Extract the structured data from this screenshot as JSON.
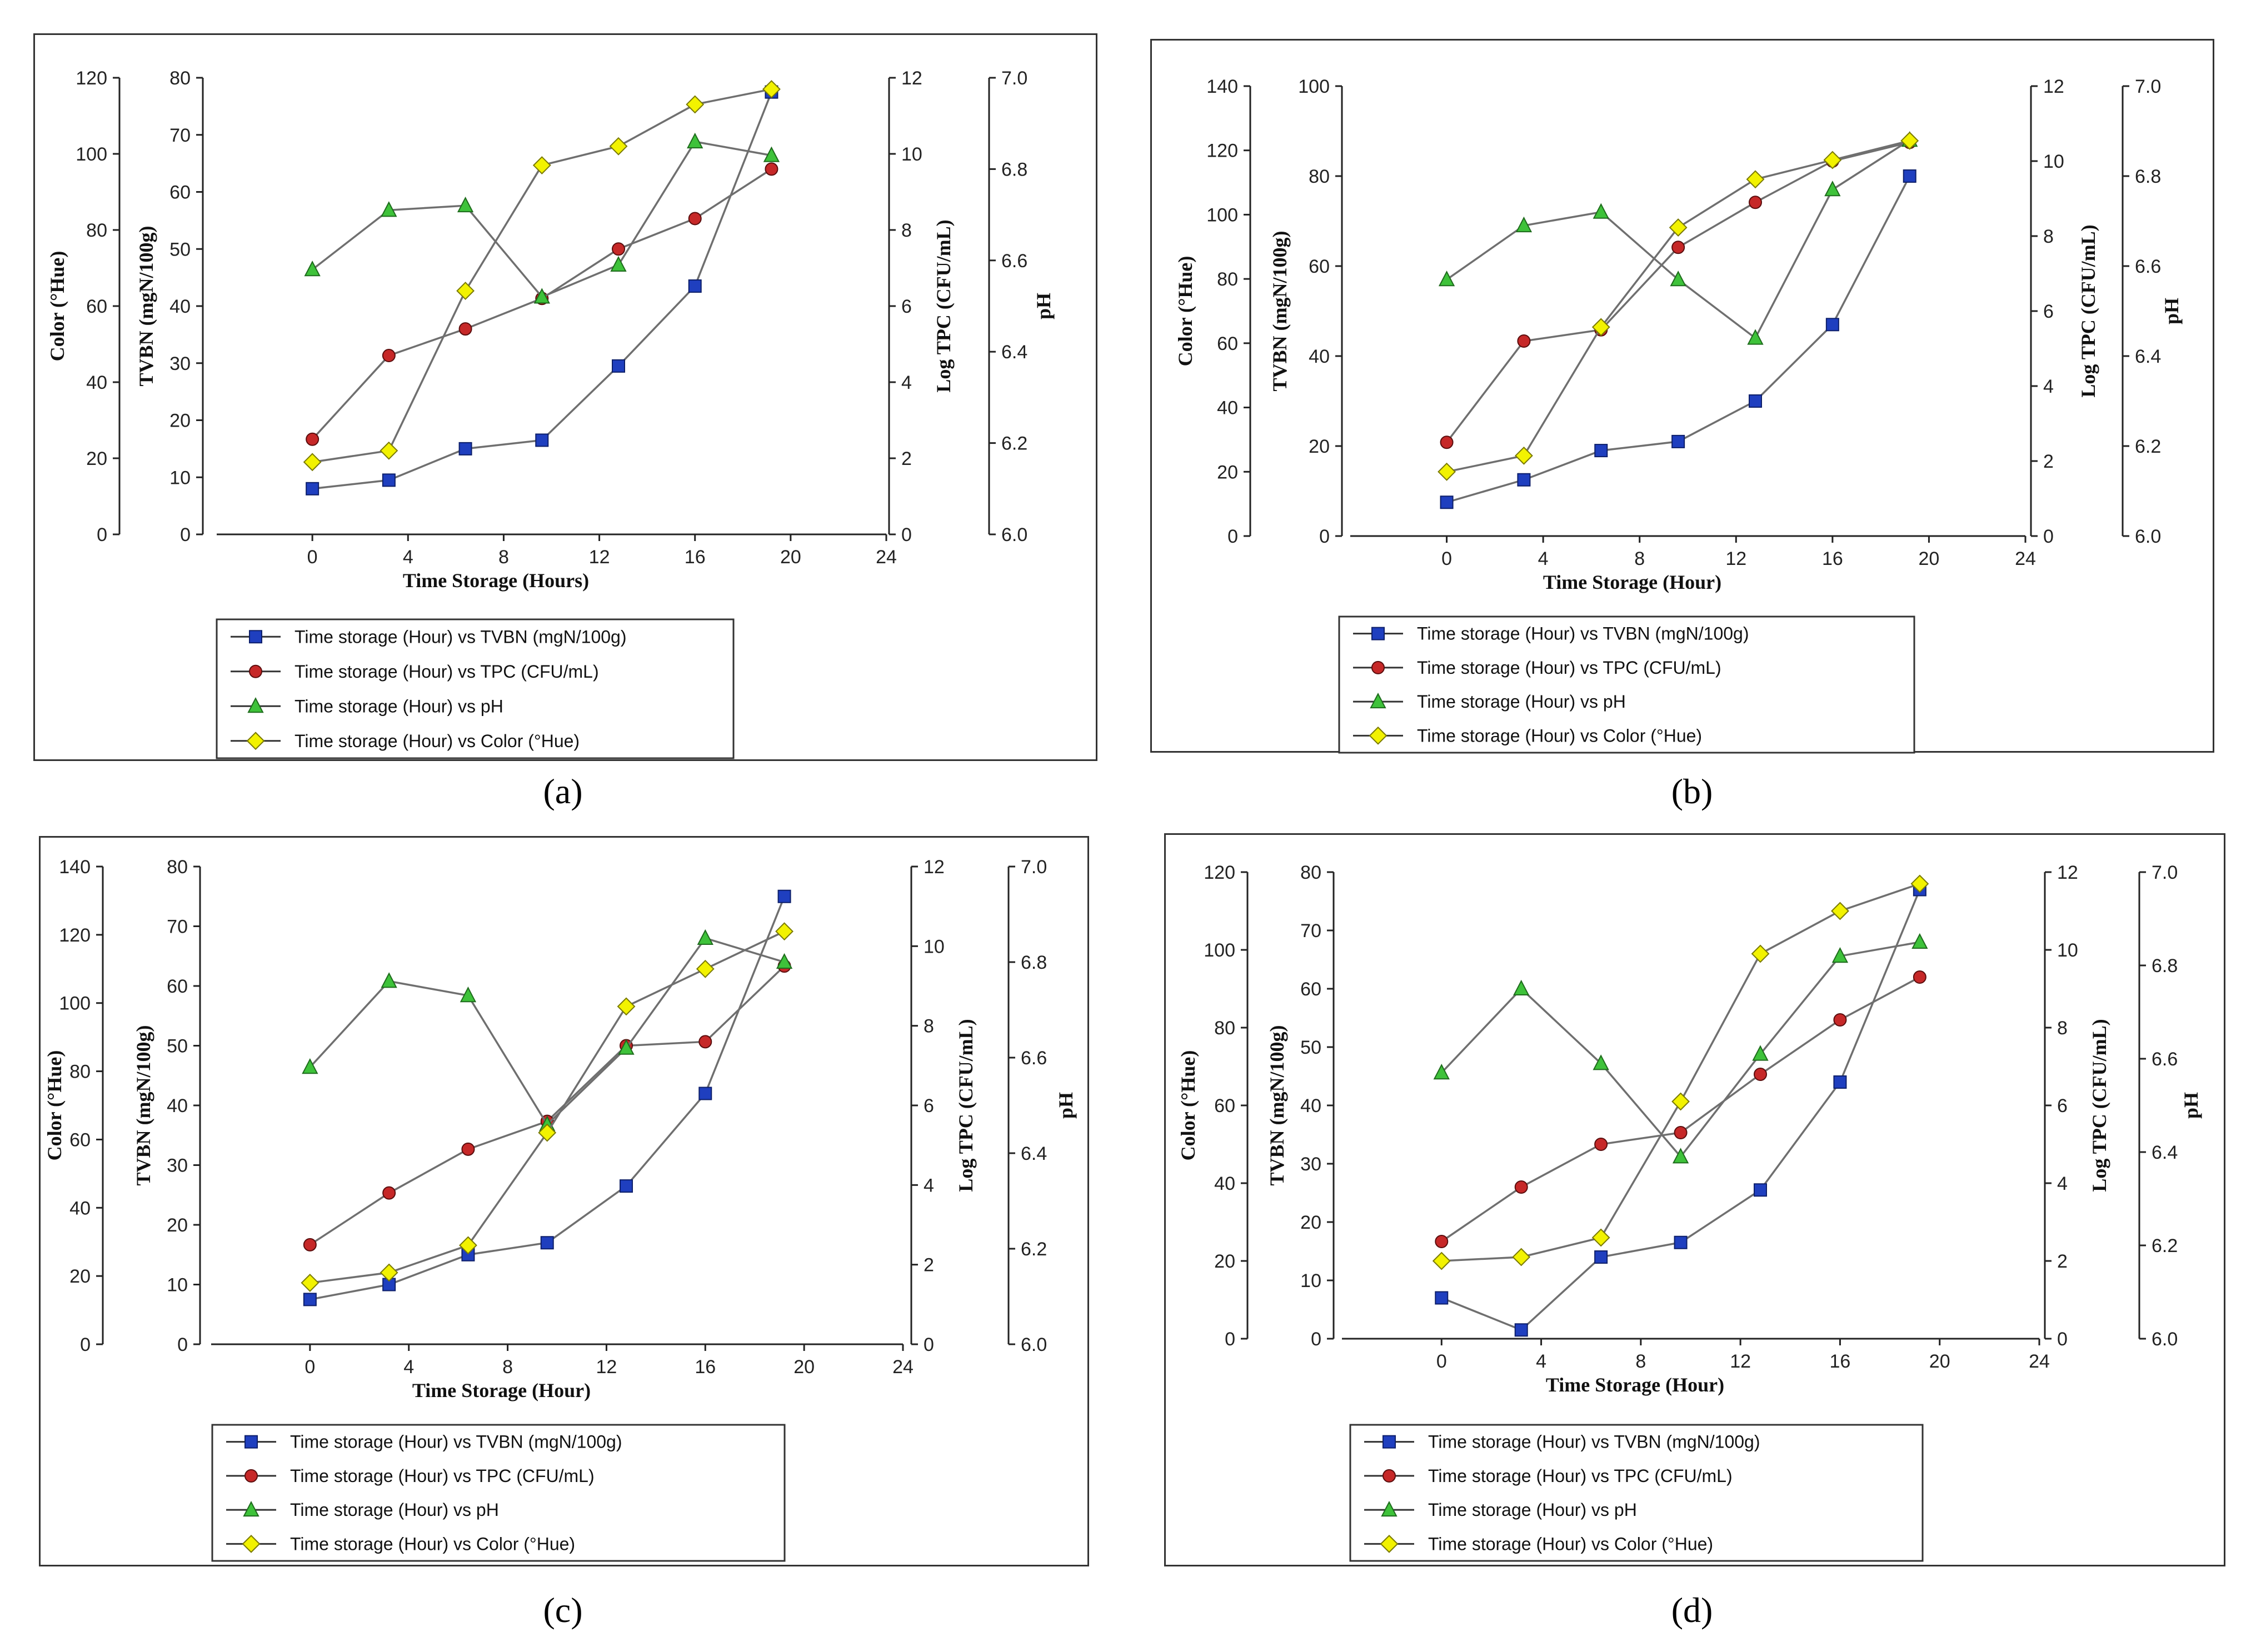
{
  "figure": {
    "series_styles": [
      {
        "marker": "square",
        "fill": "#1f3fbf",
        "stroke": "#0d1f6a"
      },
      {
        "marker": "circle",
        "fill": "#c62828",
        "stroke": "#5a0d0d"
      },
      {
        "marker": "triangle",
        "fill": "#3ec23a",
        "stroke": "#1e6b1c"
      },
      {
        "marker": "diamond",
        "fill": "#f2f200",
        "stroke": "#7a7a00"
      }
    ],
    "line_color": "#6f6f6f"
  },
  "chart_data": [
    {
      "panel_label": "(a)",
      "type": "line",
      "xlabel": "Time Storage (Hours)",
      "xticks": [
        "0",
        "4",
        "8",
        "12",
        "16",
        "20",
        "24"
      ],
      "xlim": [
        -4,
        24
      ],
      "axes": {
        "color": {
          "label": "Color  (°Hue)",
          "ylim": [
            0,
            120
          ],
          "ticks": [
            "0",
            "20",
            "40",
            "60",
            "80",
            "100",
            "120"
          ]
        },
        "tvbn": {
          "label": "TVBN (mgN/100g)",
          "ylim": [
            0,
            80
          ],
          "ticks": [
            "0",
            "10",
            "20",
            "30",
            "40",
            "50",
            "60",
            "70",
            "80"
          ]
        },
        "tpc": {
          "label": "Log TPC (CFU/mL)",
          "ylim": [
            0,
            12
          ],
          "ticks": [
            "0",
            "2",
            "4",
            "6",
            "8",
            "10",
            "12"
          ]
        },
        "ph": {
          "label": "pH",
          "ylim": [
            6.0,
            7.0
          ],
          "ticks": [
            "6.0",
            "6.2",
            "6.4",
            "6.6",
            "6.8",
            "7.0"
          ]
        }
      },
      "series": [
        {
          "name": "Time storage (Hour) vs TVBN (mgN/100g)",
          "axis": "tvbn",
          "x": [
            0,
            3.2,
            6.4,
            9.6,
            12.8,
            16,
            19.2
          ],
          "values": [
            8,
            9.5,
            15,
            16.5,
            29.5,
            43.5,
            77.5
          ]
        },
        {
          "name": "Time storage (Hour) vs TPC (CFU/mL)",
          "axis": "tpc",
          "x": [
            0,
            3.2,
            6.4,
            9.6,
            12.8,
            16,
            19.2
          ],
          "values": [
            2.5,
            4.7,
            5.4,
            6.2,
            7.5,
            8.3,
            9.6
          ]
        },
        {
          "name": "Time storage (Hour) vs pH",
          "axis": "ph",
          "x": [
            0,
            3.2,
            6.4,
            9.6,
            12.8,
            16,
            19.2
          ],
          "values": [
            6.58,
            6.71,
            6.72,
            6.52,
            6.59,
            6.86,
            6.83
          ]
        },
        {
          "name": "Time storage (Hour) vs Color (°Hue)",
          "axis": "color",
          "x": [
            0,
            3.2,
            6.4,
            9.6,
            12.8,
            16,
            19.2
          ],
          "values": [
            19,
            22,
            64,
            97,
            102,
            113,
            117
          ]
        }
      ]
    },
    {
      "panel_label": "(b)",
      "type": "line",
      "xlabel": "Time Storage (Hour)",
      "xticks": [
        "0",
        "4",
        "8",
        "12",
        "16",
        "20",
        "24"
      ],
      "xlim": [
        -4,
        24
      ],
      "axes": {
        "color": {
          "label": "Color  (°Hue)",
          "ylim": [
            0,
            140
          ],
          "ticks": [
            "0",
            "20",
            "40",
            "60",
            "80",
            "100",
            "120",
            "140"
          ]
        },
        "tvbn": {
          "label": "TVBN (mgN/100g)",
          "ylim": [
            0,
            100
          ],
          "ticks": [
            "0",
            "20",
            "40",
            "60",
            "80",
            "100"
          ]
        },
        "tpc": {
          "label": "Log TPC (CFU/mL)",
          "ylim": [
            0,
            12
          ],
          "ticks": [
            "0",
            "2",
            "4",
            "6",
            "8",
            "10",
            "12"
          ]
        },
        "ph": {
          "label": "pH",
          "ylim": [
            6.0,
            7.0
          ],
          "ticks": [
            "6.0",
            "6.2",
            "6.4",
            "6.6",
            "6.8",
            "7.0"
          ]
        }
      },
      "series": [
        {
          "name": "Time storage (Hour) vs TVBN (mgN/100g)",
          "axis": "tvbn",
          "x": [
            0,
            3.2,
            6.4,
            9.6,
            12.8,
            16,
            19.2
          ],
          "values": [
            7.5,
            12.5,
            19,
            21,
            30,
            47,
            80
          ]
        },
        {
          "name": "Time storage (Hour) vs TPC (CFU/mL)",
          "axis": "tpc",
          "x": [
            0,
            3.2,
            6.4,
            9.6,
            12.8,
            16,
            19.2
          ],
          "values": [
            2.5,
            5.2,
            5.5,
            7.7,
            8.9,
            10.0,
            10.5
          ]
        },
        {
          "name": "Time storage (Hour) vs pH",
          "axis": "ph",
          "x": [
            0,
            3.2,
            6.4,
            9.6,
            12.8,
            16,
            19.2
          ],
          "values": [
            6.57,
            6.69,
            6.72,
            6.57,
            6.44,
            6.77,
            6.88
          ]
        },
        {
          "name": "Time storage (Hour) vs Color (°Hue)",
          "axis": "color",
          "x": [
            0,
            3.2,
            6.4,
            9.6,
            12.8,
            16,
            19.2
          ],
          "values": [
            20,
            25,
            65,
            96,
            111,
            117,
            123
          ]
        }
      ]
    },
    {
      "panel_label": "(c)",
      "type": "line",
      "xlabel": "Time Storage (Hour)",
      "xticks": [
        "0",
        "4",
        "8",
        "12",
        "16",
        "20",
        "24"
      ],
      "xlim": [
        -4,
        24
      ],
      "axes": {
        "color": {
          "label": "Color  (°Hue)",
          "ylim": [
            0,
            140
          ],
          "ticks": [
            "0",
            "20",
            "40",
            "60",
            "80",
            "100",
            "120",
            "140"
          ]
        },
        "tvbn": {
          "label": "TVBN (mgN/100g)",
          "ylim": [
            0,
            80
          ],
          "ticks": [
            "0",
            "10",
            "20",
            "30",
            "40",
            "50",
            "60",
            "70",
            "80"
          ]
        },
        "tpc": {
          "label": "Log TPC (CFU/mL)",
          "ylim": [
            0,
            12
          ],
          "ticks": [
            "0",
            "2",
            "4",
            "6",
            "8",
            "10",
            "12"
          ]
        },
        "ph": {
          "label": "pH",
          "ylim": [
            6.0,
            7.0
          ],
          "ticks": [
            "6.0",
            "6.2",
            "6.4",
            "6.6",
            "6.8",
            "7.0"
          ]
        }
      },
      "series": [
        {
          "name": "Time storage (Hour) vs TVBN (mgN/100g)",
          "axis": "tvbn",
          "x": [
            0,
            3.2,
            6.4,
            9.6,
            12.8,
            16,
            19.2
          ],
          "values": [
            7.5,
            10,
            15,
            17,
            26.5,
            42,
            75
          ]
        },
        {
          "name": "Time storage (Hour) vs TPC (CFU/mL)",
          "axis": "tpc",
          "x": [
            0,
            3.2,
            6.4,
            9.6,
            12.8,
            16,
            19.2
          ],
          "values": [
            2.5,
            3.8,
            4.9,
            5.6,
            7.5,
            7.6,
            9.5
          ]
        },
        {
          "name": "Time storage (Hour) vs pH",
          "axis": "ph",
          "x": [
            0,
            3.2,
            6.4,
            9.6,
            12.8,
            16,
            19.2
          ],
          "values": [
            6.58,
            6.76,
            6.73,
            6.46,
            6.62,
            6.85,
            6.8
          ]
        },
        {
          "name": "Time storage (Hour) vs Color (°Hue)",
          "axis": "color",
          "x": [
            0,
            3.2,
            6.4,
            9.6,
            12.8,
            16,
            19.2
          ],
          "values": [
            18,
            21,
            29,
            62,
            99,
            110,
            121
          ]
        }
      ]
    },
    {
      "panel_label": "(d)",
      "type": "line",
      "xlabel": "Time Storage (Hour)",
      "xticks": [
        "0",
        "4",
        "8",
        "12",
        "16",
        "20",
        "24"
      ],
      "xlim": [
        -4,
        24
      ],
      "axes": {
        "color": {
          "label": "Color  (°Hue)",
          "ylim": [
            0,
            120
          ],
          "ticks": [
            "0",
            "20",
            "40",
            "60",
            "80",
            "100",
            "120"
          ]
        },
        "tvbn": {
          "label": "TVBN (mgN/100g)",
          "ylim": [
            0,
            80
          ],
          "ticks": [
            "0",
            "10",
            "20",
            "30",
            "40",
            "50",
            "60",
            "70",
            "80"
          ]
        },
        "tpc": {
          "label": "Log TPC (CFU/mL)",
          "ylim": [
            0,
            12
          ],
          "ticks": [
            "0",
            "2",
            "4",
            "6",
            "8",
            "10",
            "12"
          ]
        },
        "ph": {
          "label": "pH",
          "ylim": [
            6.0,
            7.0
          ],
          "ticks": [
            "6.0",
            "6.2",
            "6.4",
            "6.6",
            "6.8",
            "7.0"
          ]
        }
      },
      "series": [
        {
          "name": "Time storage (Hour) vs TVBN (mgN/100g)",
          "axis": "tvbn",
          "x": [
            0,
            3.2,
            6.4,
            9.6,
            12.8,
            16,
            19.2
          ],
          "values": [
            7,
            1.5,
            14,
            16.5,
            25.5,
            44,
            77
          ]
        },
        {
          "name": "Time storage (Hour) vs TPC (CFU/mL)",
          "axis": "tpc",
          "x": [
            0,
            3.2,
            6.4,
            9.6,
            12.8,
            16,
            19.2
          ],
          "values": [
            2.5,
            3.9,
            5.0,
            5.3,
            6.8,
            8.2,
            9.3
          ]
        },
        {
          "name": "Time storage (Hour) vs pH",
          "axis": "ph",
          "x": [
            0,
            3.2,
            6.4,
            9.6,
            12.8,
            16,
            19.2
          ],
          "values": [
            6.57,
            6.75,
            6.59,
            6.39,
            6.61,
            6.82,
            6.85
          ]
        },
        {
          "name": "Time storage (Hour) vs Color (°Hue)",
          "axis": "color",
          "x": [
            0,
            3.2,
            6.4,
            9.6,
            12.8,
            16,
            19.2
          ],
          "values": [
            20,
            21,
            26,
            61,
            99,
            110,
            117
          ]
        }
      ]
    }
  ]
}
